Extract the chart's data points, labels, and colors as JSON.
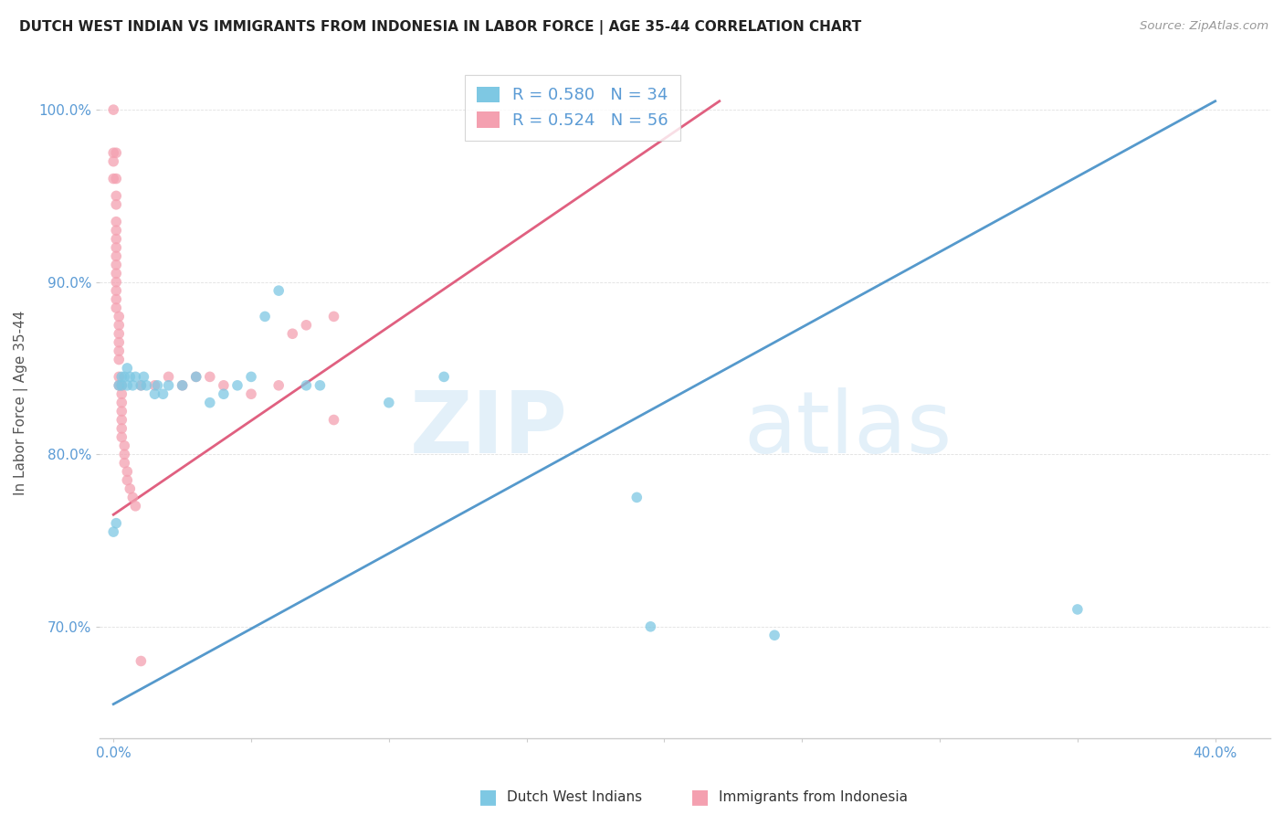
{
  "title": "DUTCH WEST INDIAN VS IMMIGRANTS FROM INDONESIA IN LABOR FORCE | AGE 35-44 CORRELATION CHART",
  "source": "Source: ZipAtlas.com",
  "ylabel": "In Labor Force | Age 35-44",
  "yaxis_ticks": [
    "70.0%",
    "80.0%",
    "90.0%",
    "100.0%"
  ],
  "yaxis_values": [
    0.7,
    0.8,
    0.9,
    1.0
  ],
  "legend_blue_r": "R = 0.580",
  "legend_blue_n": "N = 34",
  "legend_pink_r": "R = 0.524",
  "legend_pink_n": "N = 56",
  "legend_label_blue": "Dutch West Indians",
  "legend_label_pink": "Immigrants from Indonesia",
  "blue_color": "#7ec8e3",
  "pink_color": "#f4a0b0",
  "blue_line_color": "#5599cc",
  "pink_line_color": "#e06080",
  "blue_scatter": [
    [
      0.0,
      0.755
    ],
    [
      0.001,
      0.76
    ],
    [
      0.002,
      0.84
    ],
    [
      0.003,
      0.84
    ],
    [
      0.003,
      0.845
    ],
    [
      0.004,
      0.845
    ],
    [
      0.005,
      0.84
    ],
    [
      0.005,
      0.85
    ],
    [
      0.006,
      0.845
    ],
    [
      0.007,
      0.84
    ],
    [
      0.008,
      0.845
    ],
    [
      0.01,
      0.84
    ],
    [
      0.011,
      0.845
    ],
    [
      0.012,
      0.84
    ],
    [
      0.015,
      0.835
    ],
    [
      0.016,
      0.84
    ],
    [
      0.018,
      0.835
    ],
    [
      0.02,
      0.84
    ],
    [
      0.025,
      0.84
    ],
    [
      0.03,
      0.845
    ],
    [
      0.035,
      0.83
    ],
    [
      0.04,
      0.835
    ],
    [
      0.045,
      0.84
    ],
    [
      0.05,
      0.845
    ],
    [
      0.055,
      0.88
    ],
    [
      0.06,
      0.895
    ],
    [
      0.07,
      0.84
    ],
    [
      0.075,
      0.84
    ],
    [
      0.1,
      0.83
    ],
    [
      0.12,
      0.845
    ],
    [
      0.19,
      0.775
    ],
    [
      0.195,
      0.7
    ],
    [
      0.24,
      0.695
    ],
    [
      0.35,
      0.71
    ]
  ],
  "pink_scatter": [
    [
      0.0,
      1.0
    ],
    [
      0.0,
      0.975
    ],
    [
      0.0,
      0.97
    ],
    [
      0.0,
      0.96
    ],
    [
      0.001,
      0.975
    ],
    [
      0.001,
      0.96
    ],
    [
      0.001,
      0.95
    ],
    [
      0.001,
      0.945
    ],
    [
      0.001,
      0.935
    ],
    [
      0.001,
      0.93
    ],
    [
      0.001,
      0.925
    ],
    [
      0.001,
      0.92
    ],
    [
      0.001,
      0.915
    ],
    [
      0.001,
      0.91
    ],
    [
      0.001,
      0.905
    ],
    [
      0.001,
      0.9
    ],
    [
      0.001,
      0.895
    ],
    [
      0.001,
      0.89
    ],
    [
      0.001,
      0.885
    ],
    [
      0.002,
      0.88
    ],
    [
      0.002,
      0.875
    ],
    [
      0.002,
      0.87
    ],
    [
      0.002,
      0.865
    ],
    [
      0.002,
      0.86
    ],
    [
      0.002,
      0.855
    ],
    [
      0.002,
      0.845
    ],
    [
      0.002,
      0.84
    ],
    [
      0.003,
      0.84
    ],
    [
      0.003,
      0.835
    ],
    [
      0.003,
      0.83
    ],
    [
      0.003,
      0.825
    ],
    [
      0.003,
      0.82
    ],
    [
      0.003,
      0.815
    ],
    [
      0.003,
      0.81
    ],
    [
      0.004,
      0.805
    ],
    [
      0.004,
      0.8
    ],
    [
      0.004,
      0.795
    ],
    [
      0.005,
      0.79
    ],
    [
      0.005,
      0.785
    ],
    [
      0.006,
      0.78
    ],
    [
      0.007,
      0.775
    ],
    [
      0.008,
      0.77
    ],
    [
      0.01,
      0.84
    ],
    [
      0.015,
      0.84
    ],
    [
      0.02,
      0.845
    ],
    [
      0.025,
      0.84
    ],
    [
      0.03,
      0.845
    ],
    [
      0.035,
      0.845
    ],
    [
      0.04,
      0.84
    ],
    [
      0.05,
      0.835
    ],
    [
      0.06,
      0.84
    ],
    [
      0.065,
      0.87
    ],
    [
      0.07,
      0.875
    ],
    [
      0.08,
      0.88
    ],
    [
      0.01,
      0.68
    ],
    [
      0.08,
      0.82
    ]
  ],
  "blue_line": [
    [
      0.0,
      0.655
    ],
    [
      0.4,
      1.005
    ]
  ],
  "pink_line": [
    [
      0.0,
      0.765
    ],
    [
      0.22,
      1.005
    ]
  ],
  "xlim": [
    -0.005,
    0.42
  ],
  "ylim": [
    0.635,
    1.025
  ],
  "xticks": [
    0.0,
    0.05,
    0.1,
    0.15,
    0.2,
    0.25,
    0.3,
    0.35,
    0.4
  ],
  "xtick_labels": [
    "0.0%",
    "",
    "",
    "",
    "",
    "",
    "",
    "",
    "40.0%"
  ],
  "background_color": "#ffffff",
  "grid_color": "#e0e0e0",
  "axis_color": "#cccccc",
  "tick_color": "#5b9bd5",
  "title_color": "#222222",
  "source_color": "#999999",
  "ylabel_color": "#555555"
}
